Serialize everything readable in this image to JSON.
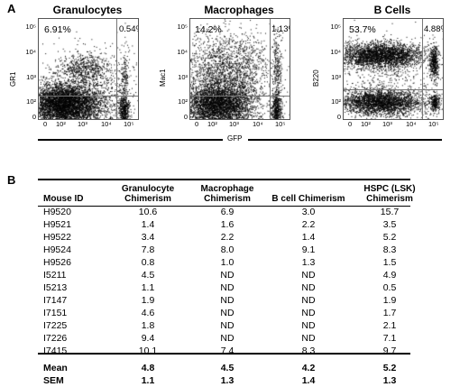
{
  "panel_a": {
    "letter": "A",
    "plots": [
      {
        "title": "Granulocytes",
        "ylabel": "GR1",
        "pct_left": "6.91%",
        "pct_right": "0.54%"
      },
      {
        "title": "Macrophages",
        "ylabel": "Mac1",
        "pct_left": "14.2%",
        "pct_right": "1.13%"
      },
      {
        "title": "B Cells",
        "ylabel": "B220",
        "pct_left": "53.7%",
        "pct_right": "4.88%"
      }
    ],
    "y_ticks": [
      "10⁵",
      "10⁴",
      "10³",
      "10²",
      "0"
    ],
    "x_ticks": [
      "0",
      "10²",
      "10³",
      "10⁴",
      "10⁵"
    ],
    "xlabel": "GFP"
  },
  "panel_b": {
    "letter": "B",
    "headers": [
      "Mouse ID",
      "Granulocyte Chimerism",
      "Macrophage Chimerism",
      "B cell Chimerism",
      "HSPC (LSK) Chimerism"
    ],
    "rows": [
      [
        "H9520",
        "10.6",
        "6.9",
        "3.0",
        "15.7"
      ],
      [
        "H9521",
        "1.4",
        "1.6",
        "2.2",
        "3.5"
      ],
      [
        "H9522",
        "3.4",
        "2.2",
        "1.4",
        "5.2"
      ],
      [
        "H9524",
        "7.8",
        "8.0",
        "9.1",
        "8.3"
      ],
      [
        "H9526",
        "0.8",
        "1.0",
        "1.3",
        "1.5"
      ],
      [
        "I5211",
        "4.5",
        "ND",
        "ND",
        "4.9"
      ],
      [
        "I5213",
        "1.1",
        "ND",
        "ND",
        "0.5"
      ],
      [
        "I7147",
        "1.9",
        "ND",
        "ND",
        "1.9"
      ],
      [
        "I7151",
        "4.6",
        "ND",
        "ND",
        "1.7"
      ],
      [
        "I7225",
        "1.8",
        "ND",
        "ND",
        "2.1"
      ],
      [
        "I7226",
        "9.4",
        "ND",
        "ND",
        "7.1"
      ],
      [
        "I7415",
        "10.1",
        "7.4",
        "8.3",
        "9.7"
      ]
    ],
    "summary": [
      [
        "Mean",
        "4.8",
        "4.5",
        "4.2",
        "5.2"
      ],
      [
        "SEM",
        "1.1",
        "1.3",
        "1.4",
        "1.3"
      ]
    ]
  }
}
